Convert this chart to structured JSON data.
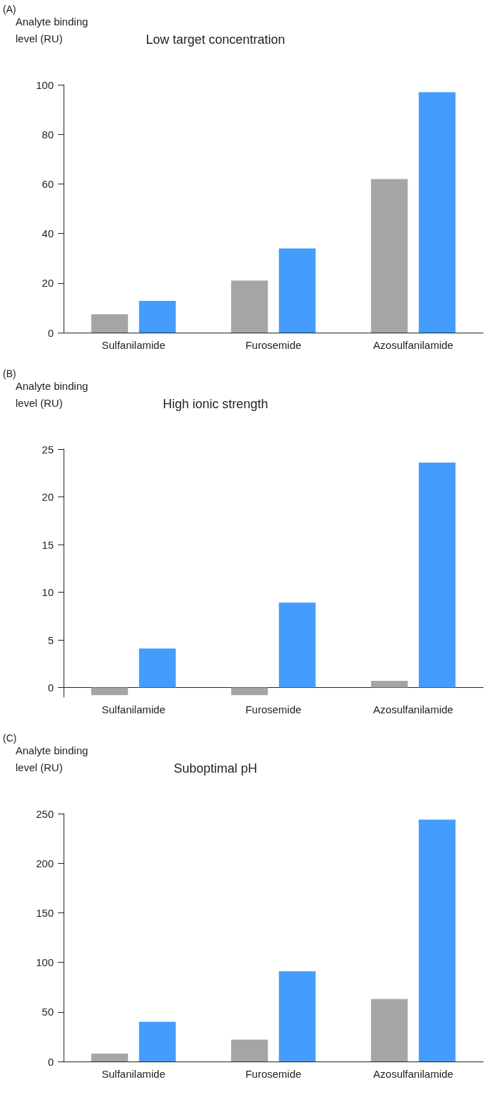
{
  "chart_data": [
    {
      "type": "bar",
      "title": "Low target concentration",
      "ylabel": "Analyte binding level (RU)",
      "annotations": [
        "(A)"
      ],
      "categories": [
        "Sulfanilamide",
        "Furosemide",
        "Azosulfanilamide"
      ],
      "series": [
        {
          "color": "#a5a5a5",
          "values": [
            7.4,
            21,
            62
          ]
        },
        {
          "color": "#449dfc",
          "values": [
            12.8,
            34,
            97
          ]
        }
      ],
      "ylim": [
        0,
        100
      ],
      "yticks": [
        0,
        20,
        40,
        60,
        80,
        100
      ],
      "grid": false
    },
    {
      "type": "bar",
      "title": "High ionic strength",
      "ylabel": "Analyte binding level (RU)",
      "annotations": [
        "(B)"
      ],
      "categories": [
        "Sulfanilamide",
        "Furosemide",
        "Azosulfanilamide"
      ],
      "series": [
        {
          "color": "#a5a5a5",
          "values": [
            -0.8,
            -0.8,
            0.7
          ]
        },
        {
          "color": "#449dfc",
          "values": [
            4.1,
            8.9,
            23.6
          ]
        }
      ],
      "ylim": [
        -1,
        25
      ],
      "yticks": [
        0,
        5,
        10,
        15,
        20,
        25
      ],
      "grid": false
    },
    {
      "type": "bar",
      "title": "Suboptimal pH",
      "ylabel": "Analyte binding level (RU)",
      "annotations": [
        "(C)"
      ],
      "categories": [
        "Sulfanilamide",
        "Furosemide",
        "Azosulfanilamide"
      ],
      "series": [
        {
          "color": "#a5a5a5",
          "values": [
            8,
            22,
            63
          ]
        },
        {
          "color": "#449dfc",
          "values": [
            40,
            91,
            244
          ]
        }
      ],
      "ylim": [
        0,
        250
      ],
      "yticks": [
        0,
        50,
        100,
        150,
        200,
        250
      ],
      "grid": false
    }
  ]
}
